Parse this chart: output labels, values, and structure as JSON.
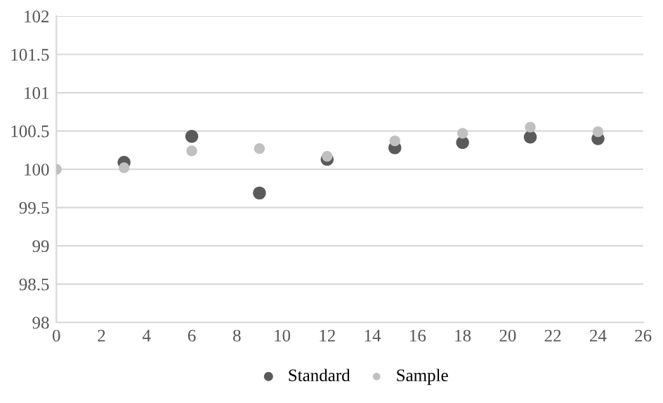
{
  "chart_data": {
    "type": "scatter",
    "x": [
      0,
      3,
      6,
      9,
      12,
      15,
      18,
      21,
      24
    ],
    "series": [
      {
        "name": "Standard",
        "color": "#5a5a5a",
        "values": [
          null,
          100.09,
          100.43,
          99.69,
          100.13,
          100.28,
          100.35,
          100.42,
          100.4
        ]
      },
      {
        "name": "Sample",
        "color": "#c0c0c0",
        "values": [
          100,
          100.02,
          100.24,
          100.27,
          100.17,
          100.37,
          100.47,
          100.55,
          100.49
        ]
      }
    ],
    "xlim": [
      0,
      26
    ],
    "xticks": [
      0,
      2,
      4,
      6,
      8,
      10,
      12,
      14,
      16,
      18,
      20,
      22,
      24,
      26
    ],
    "ylim": [
      98,
      102
    ],
    "yticks": [
      98,
      {
        "value": 98.5,
        "label": "98.5"
      },
      99,
      {
        "value": 99.5,
        "label": "99.5"
      },
      100,
      {
        "value": 100.5,
        "label": "100.5"
      },
      101,
      {
        "value": 101.5,
        "label": "101.5"
      },
      102
    ],
    "grid": "y",
    "legend": "bottom",
    "marker": "circle"
  }
}
